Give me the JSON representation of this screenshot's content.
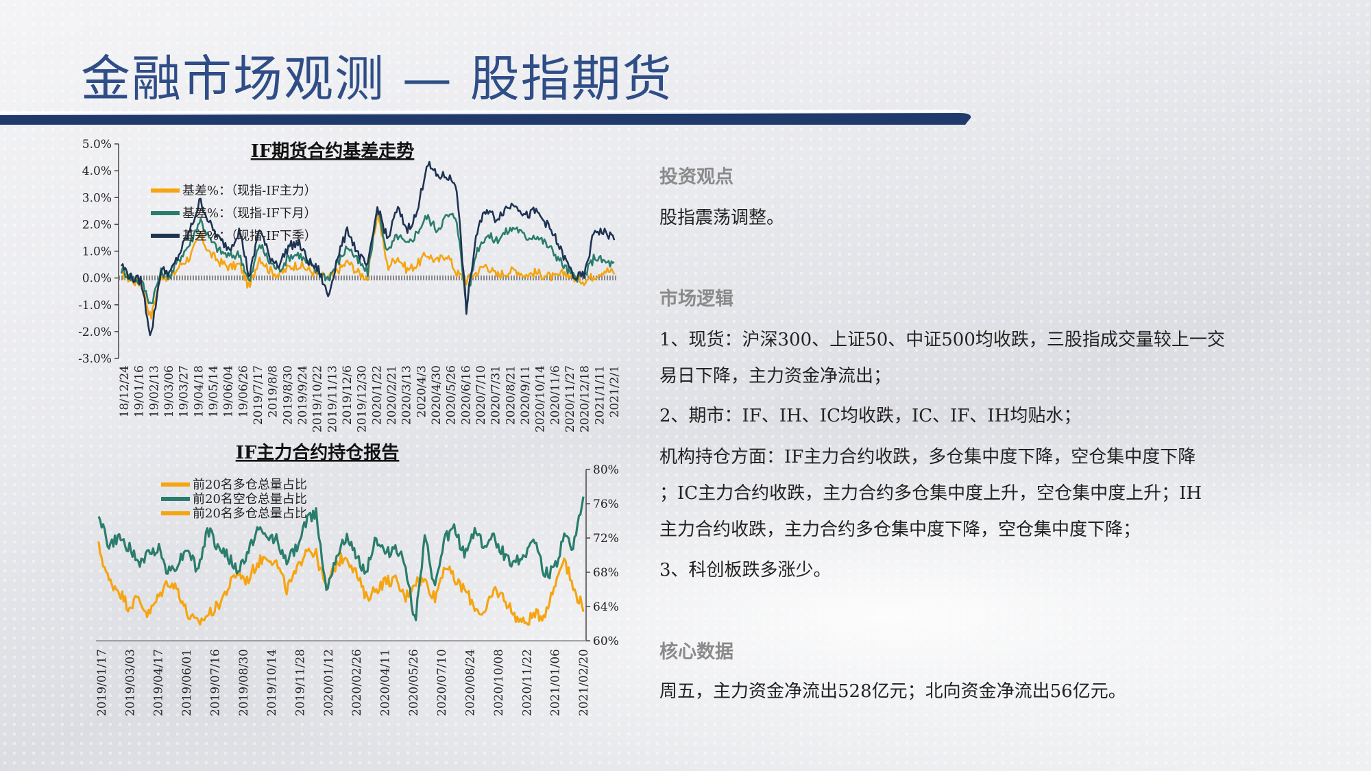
{
  "title": "金融市场观测  —  股指期货",
  "sections": {
    "view_head": "投资观点",
    "view_text": "股指震荡调整。",
    "logic_head": "市场逻辑",
    "logic_lines": [
      "1、现货：沪深300、上证50、中证500均收跌，三股指成交量较上一交",
      "易日下降，主力资金净流出；",
      "2、期市：IF、IH、IC均收跌，IC、IF、IH均贴水；",
      "机构持仓方面：IF主力合约收跌，多仓集中度下降，空仓集中度下降",
      "；IC主力合约收跌，主力合约多仓集中度上升，空仓集中度上升；IH",
      "主力合约收跌，主力合约多仓集中度下降，空仓集中度下降；",
      "3、科创板跌多涨少。"
    ],
    "core_head": "核心数据",
    "core_text": "周五，主力资金净流出528亿元；北向资金净流出56亿元。"
  },
  "colors": {
    "title": "#2f4d86",
    "bar": "#1f3a6b",
    "orange": "#f5a512",
    "teal": "#2a7d6c",
    "navy": "#1e3353"
  },
  "chart_data": [
    {
      "type": "line",
      "title": "IF期货合约基差走势",
      "yticks": [
        "5.0%",
        "4.0%",
        "3.0%",
        "2.0%",
        "1.0%",
        "0.0%",
        "-1.0%",
        "-2.0%",
        "-3.0%"
      ],
      "ylim": [
        -3.0,
        5.0
      ],
      "xticks": [
        "18/12/24",
        "19/01/16",
        "19/02/13",
        "19/03/06",
        "19/03/27",
        "19/04/18",
        "19/05/14",
        "19/06/04",
        "19/06/26",
        "2019/7/17",
        "2019/8/8",
        "2019/8/30",
        "2019/9/24",
        "2019/10/22",
        "2019/11/13",
        "2019/12/6",
        "2019/12/30",
        "2020/1/22",
        "2020/2/21",
        "2020/3/13",
        "2020/4/3",
        "2020/4/30",
        "2020/5/26",
        "2020/6/16",
        "2020/7/10",
        "2020/7/31",
        "2020/8/21",
        "2020/9/11",
        "2020/10/14",
        "2020/11/6",
        "2020/11/27",
        "2020/12/18",
        "2021/1/11",
        "2021/2/1"
      ],
      "legend": [
        "基差%：（现指-IF主力）",
        "基差%：（现指-IF下月）",
        "基差%：（现指-IF下季）"
      ],
      "series": [
        {
          "name": "基差%：（现指-IF主力）",
          "color": "#f5a512",
          "values": [
            0.2,
            -0.1,
            -0.2,
            -1.5,
            0.1,
            0.0,
            0.5,
            0.8,
            1.6,
            0.9,
            0.6,
            0.4,
            0.5,
            -0.4,
            0.8,
            0.3,
            0.1,
            0.4,
            0.5,
            0.3,
            0.1,
            0.0,
            0.3,
            0.6,
            0.2,
            0.0,
            2.5,
            0.4,
            0.8,
            0.3,
            0.5,
            0.9,
            0.6,
            0.9,
            0.2,
            -0.1,
            0.2,
            0.5,
            0.1,
            0.2,
            0.3,
            0.1,
            0.2,
            0.1,
            0.0,
            0.2,
            0.0,
            -0.1,
            0.1,
            0.3,
            0.2
          ]
        },
        {
          "name": "基差%：（现指-IF下月）",
          "color": "#2a7d6c",
          "values": [
            0.3,
            0.0,
            -0.1,
            -1.0,
            0.2,
            0.1,
            0.8,
            1.3,
            2.2,
            1.4,
            1.0,
            0.8,
            0.9,
            -0.2,
            1.3,
            0.6,
            0.3,
            0.8,
            0.9,
            0.5,
            0.2,
            0.0,
            0.6,
            1.2,
            0.6,
            0.2,
            2.6,
            0.9,
            1.6,
            1.2,
            1.7,
            2.3,
            1.8,
            2.3,
            2.3,
            -1.0,
            1.0,
            1.6,
            1.4,
            1.7,
            1.9,
            1.5,
            1.6,
            1.3,
            0.9,
            0.4,
            0.0,
            0.1,
            0.8,
            0.6,
            0.5
          ]
        },
        {
          "name": "基差%：（现指-IF下季）",
          "color": "#1e3353",
          "values": [
            0.5,
            0.0,
            -0.1,
            -2.2,
            0.3,
            0.2,
            1.0,
            1.8,
            2.9,
            2.0,
            1.4,
            1.1,
            1.8,
            0.0,
            1.9,
            0.8,
            0.5,
            1.2,
            1.3,
            0.6,
            0.3,
            -0.7,
            0.9,
            1.8,
            0.9,
            0.4,
            2.7,
            1.4,
            2.6,
            1.8,
            2.4,
            4.3,
            3.8,
            3.8,
            3.5,
            -1.2,
            1.6,
            2.6,
            2.2,
            2.6,
            2.8,
            2.3,
            2.5,
            2.1,
            1.5,
            0.7,
            0.0,
            0.1,
            1.8,
            1.7,
            1.5
          ]
        }
      ]
    },
    {
      "type": "line",
      "title": "IF主力合约持仓报告",
      "yticks": [
        "80%",
        "76%",
        "72%",
        "68%",
        "64%",
        "60%"
      ],
      "ylim": [
        60,
        80
      ],
      "xticks": [
        "2019/01/17",
        "2019/03/03",
        "2019/04/17",
        "2019/06/01",
        "2019/07/16",
        "2019/08/30",
        "2019/10/14",
        "2019/11/28",
        "2020/01/12",
        "2020/02/26",
        "2020/04/11",
        "2020/05/26",
        "2020/07/10",
        "2020/08/24",
        "2020/10/08",
        "2020/11/22",
        "2021/01/06",
        "2021/02/20"
      ],
      "legend": [
        "前20名多仓总量占比",
        "前20名空仓总量占比",
        "前20名多仓总量占比"
      ],
      "series": [
        {
          "name": "前20名多仓总量占比",
          "color": "#f5a512",
          "values": [
            71,
            67,
            66,
            64,
            65,
            63,
            65,
            67,
            66,
            63,
            62,
            63,
            64,
            66,
            68,
            67,
            69,
            70,
            69,
            66,
            68,
            71,
            70,
            66,
            69,
            70,
            68,
            65,
            66,
            67,
            67,
            65,
            67,
            67,
            65,
            69,
            67,
            66,
            64,
            63,
            66,
            65,
            63,
            62,
            63,
            63,
            66,
            70,
            66,
            64
          ]
        },
        {
          "name": "前20名空仓总量占比",
          "color": "#2a7d6c",
          "values": [
            75,
            71,
            72,
            71,
            69,
            70,
            71,
            68,
            69,
            71,
            68,
            73,
            71,
            70,
            68,
            70,
            73,
            72,
            72,
            69,
            71,
            74,
            75,
            66,
            70,
            72,
            70,
            68,
            72,
            70,
            71,
            69,
            62,
            72,
            66,
            72,
            73,
            70,
            73,
            71,
            72,
            70,
            69,
            70,
            72,
            68,
            68,
            72,
            71,
            77
          ]
        },
        {
          "name": "前20名多仓总量占比",
          "color": "#f5a512",
          "values": []
        }
      ]
    }
  ]
}
